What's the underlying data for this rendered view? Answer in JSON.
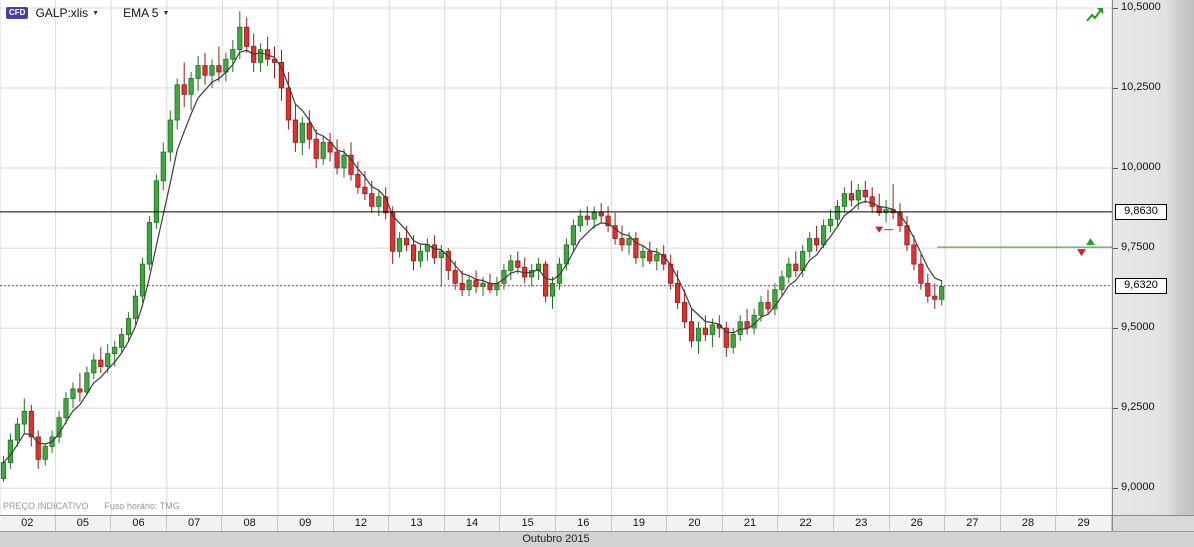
{
  "header": {
    "instrument_badge": "CFD",
    "instrument": "GALP:xlis",
    "indicator": "EMA 5",
    "dropdown_icon": "▼"
  },
  "footer": {
    "disclaimer": "PREÇO INDICATIVO",
    "timezone": "Fuso horário: TMG",
    "month_label": "Outubro 2015"
  },
  "colors": {
    "up": "#44a544",
    "up_border": "#1d741d",
    "down": "#e03030",
    "down_border": "#8f1c1c",
    "ema": "#3c3c3c",
    "grid": "#dadada",
    "badge": "#4a3f9f",
    "trend_icon": "#1e9e1e"
  },
  "chart_data": {
    "type": "candlestick",
    "title": "GALP:xlis — Outubro 2015",
    "indicator": {
      "name": "EMA",
      "period": 5
    },
    "y_ticks": [
      {
        "label": "10,5000",
        "value": 10.5
      },
      {
        "label": "10,2500",
        "value": 10.25
      },
      {
        "label": "10,0000",
        "value": 10.0
      },
      {
        "label": "9,7500",
        "value": 9.75
      },
      {
        "label": "9,5000",
        "value": 9.5
      },
      {
        "label": "9,2500",
        "value": 9.25
      },
      {
        "label": "9,0000",
        "value": 9.0
      }
    ],
    "y_range": [
      8.916,
      10.525
    ],
    "last_price": 9.632,
    "last_data_day_index": 16,
    "x_days": [
      {
        "label": "02",
        "candles": [
          [
            9.03,
            9.1,
            9.02,
            9.08
          ],
          [
            9.08,
            9.17,
            9.06,
            9.15
          ],
          [
            9.15,
            9.22,
            9.13,
            9.2
          ],
          [
            9.2,
            9.28,
            9.17,
            9.24
          ],
          [
            9.24,
            9.26,
            9.13,
            9.16
          ],
          [
            9.16,
            9.18,
            9.06,
            9.09
          ],
          [
            9.09,
            9.14,
            9.07,
            9.13
          ],
          [
            9.13,
            9.18,
            9.11,
            9.16
          ]
        ]
      },
      {
        "label": "05",
        "candles": [
          [
            9.16,
            9.24,
            9.14,
            9.22
          ],
          [
            9.22,
            9.3,
            9.2,
            9.28
          ],
          [
            9.28,
            9.33,
            9.25,
            9.31
          ],
          [
            9.31,
            9.36,
            9.27,
            9.3
          ],
          [
            9.3,
            9.38,
            9.29,
            9.36
          ],
          [
            9.36,
            9.42,
            9.34,
            9.4
          ],
          [
            9.4,
            9.44,
            9.36,
            9.38
          ],
          [
            9.38,
            9.45,
            9.36,
            9.42
          ]
        ]
      },
      {
        "label": "06",
        "candles": [
          [
            9.42,
            9.46,
            9.38,
            9.44
          ],
          [
            9.44,
            9.5,
            9.42,
            9.48
          ],
          [
            9.48,
            9.55,
            9.46,
            9.53
          ],
          [
            9.53,
            9.62,
            9.51,
            9.6
          ],
          [
            9.6,
            9.72,
            9.58,
            9.7
          ],
          [
            9.7,
            9.85,
            9.68,
            9.83
          ],
          [
            9.83,
            9.98,
            9.81,
            9.96
          ],
          [
            9.96,
            10.08,
            9.93,
            10.05
          ]
        ]
      },
      {
        "label": "07",
        "candles": [
          [
            10.05,
            10.18,
            10.02,
            10.15
          ],
          [
            10.15,
            10.28,
            10.12,
            10.26
          ],
          [
            10.26,
            10.33,
            10.19,
            10.23
          ],
          [
            10.23,
            10.3,
            10.18,
            10.28
          ],
          [
            10.28,
            10.35,
            10.24,
            10.32
          ],
          [
            10.32,
            10.36,
            10.26,
            10.29
          ],
          [
            10.29,
            10.34,
            10.25,
            10.32
          ],
          [
            10.32,
            10.38,
            10.27,
            10.3
          ]
        ]
      },
      {
        "label": "08",
        "candles": [
          [
            10.3,
            10.36,
            10.27,
            10.34
          ],
          [
            10.34,
            10.4,
            10.3,
            10.37
          ],
          [
            10.37,
            10.49,
            10.34,
            10.44
          ],
          [
            10.44,
            10.47,
            10.36,
            10.38
          ],
          [
            10.38,
            10.42,
            10.3,
            10.33
          ],
          [
            10.33,
            10.39,
            10.3,
            10.37
          ],
          [
            10.37,
            10.41,
            10.32,
            10.34
          ],
          [
            10.34,
            10.38,
            10.28,
            10.33
          ]
        ]
      },
      {
        "label": "09",
        "candles": [
          [
            10.33,
            10.37,
            10.21,
            10.25
          ],
          [
            10.25,
            10.3,
            10.12,
            10.15
          ],
          [
            10.15,
            10.2,
            10.05,
            10.08
          ],
          [
            10.08,
            10.16,
            10.04,
            10.14
          ],
          [
            10.14,
            10.18,
            10.06,
            10.09
          ],
          [
            10.09,
            10.12,
            10.0,
            10.03
          ],
          [
            10.03,
            10.1,
            10.01,
            10.08
          ],
          [
            10.08,
            10.11,
            10.02,
            10.05
          ]
        ]
      },
      {
        "label": "12",
        "candles": [
          [
            10.05,
            10.09,
            9.98,
            10.0
          ],
          [
            10.0,
            10.06,
            9.97,
            10.04
          ],
          [
            10.04,
            10.08,
            9.96,
            9.98
          ],
          [
            9.98,
            10.02,
            9.92,
            9.94
          ],
          [
            9.94,
            9.99,
            9.9,
            9.92
          ],
          [
            9.92,
            9.96,
            9.86,
            9.88
          ],
          [
            9.88,
            9.93,
            9.85,
            9.91
          ],
          [
            9.91,
            9.94,
            9.84,
            9.86
          ]
        ]
      },
      {
        "label": "13",
        "candles": [
          [
            9.86,
            9.88,
            9.7,
            9.74
          ],
          [
            9.74,
            9.8,
            9.72,
            9.78
          ],
          [
            9.78,
            9.82,
            9.74,
            9.76
          ],
          [
            9.76,
            9.79,
            9.68,
            9.71
          ],
          [
            9.71,
            9.76,
            9.69,
            9.74
          ],
          [
            9.74,
            9.78,
            9.71,
            9.76
          ],
          [
            9.76,
            9.79,
            9.7,
            9.72
          ],
          [
            9.72,
            9.76,
            9.63,
            9.74
          ]
        ]
      },
      {
        "label": "14",
        "candles": [
          [
            9.74,
            9.75,
            9.65,
            9.68
          ],
          [
            9.68,
            9.71,
            9.62,
            9.64
          ],
          [
            9.64,
            9.68,
            9.6,
            9.62
          ],
          [
            9.62,
            9.66,
            9.6,
            9.65
          ],
          [
            9.65,
            9.68,
            9.61,
            9.63
          ],
          [
            9.63,
            9.66,
            9.6,
            9.64
          ],
          [
            9.64,
            9.67,
            9.61,
            9.62
          ],
          [
            9.62,
            9.66,
            9.6,
            9.64
          ]
        ]
      },
      {
        "label": "15",
        "candles": [
          [
            9.64,
            9.7,
            9.62,
            9.68
          ],
          [
            9.68,
            9.73,
            9.65,
            9.71
          ],
          [
            9.71,
            9.74,
            9.67,
            9.69
          ],
          [
            9.69,
            9.72,
            9.64,
            9.66
          ],
          [
            9.66,
            9.7,
            9.63,
            9.68
          ],
          [
            9.68,
            9.72,
            9.65,
            9.7
          ],
          [
            9.7,
            9.71,
            9.58,
            9.6
          ],
          [
            9.6,
            9.66,
            9.56,
            9.64
          ]
        ]
      },
      {
        "label": "16",
        "candles": [
          [
            9.64,
            9.72,
            9.62,
            9.7
          ],
          [
            9.7,
            9.78,
            9.68,
            9.76
          ],
          [
            9.76,
            9.84,
            9.74,
            9.82
          ],
          [
            9.82,
            9.87,
            9.8,
            9.85
          ],
          [
            9.85,
            9.88,
            9.82,
            9.84
          ],
          [
            9.84,
            9.88,
            9.81,
            9.86
          ],
          [
            9.86,
            9.89,
            9.83,
            9.85
          ],
          [
            9.85,
            9.88,
            9.8,
            9.82
          ]
        ]
      },
      {
        "label": "19",
        "candles": [
          [
            9.82,
            9.86,
            9.76,
            9.78
          ],
          [
            9.78,
            9.82,
            9.74,
            9.76
          ],
          [
            9.76,
            9.8,
            9.73,
            9.78
          ],
          [
            9.78,
            9.8,
            9.7,
            9.72
          ],
          [
            9.72,
            9.76,
            9.69,
            9.74
          ],
          [
            9.74,
            9.77,
            9.7,
            9.71
          ],
          [
            9.71,
            9.75,
            9.68,
            9.73
          ],
          [
            9.73,
            9.76,
            9.68,
            9.7
          ]
        ]
      },
      {
        "label": "20",
        "candles": [
          [
            9.7,
            9.73,
            9.62,
            9.64
          ],
          [
            9.64,
            9.68,
            9.56,
            9.58
          ],
          [
            9.58,
            9.62,
            9.5,
            9.52
          ],
          [
            9.52,
            9.56,
            9.44,
            9.46
          ],
          [
            9.46,
            9.52,
            9.42,
            9.5
          ],
          [
            9.5,
            9.54,
            9.46,
            9.48
          ],
          [
            9.48,
            9.53,
            9.44,
            9.51
          ],
          [
            9.51,
            9.54,
            9.47,
            9.5
          ]
        ]
      },
      {
        "label": "21",
        "candles": [
          [
            9.5,
            9.52,
            9.41,
            9.44
          ],
          [
            9.44,
            9.5,
            9.42,
            9.48
          ],
          [
            9.48,
            9.54,
            9.46,
            9.52
          ],
          [
            9.52,
            9.56,
            9.48,
            9.5
          ],
          [
            9.5,
            9.56,
            9.48,
            9.54
          ],
          [
            9.54,
            9.6,
            9.52,
            9.58
          ],
          [
            9.58,
            9.62,
            9.54,
            9.56
          ],
          [
            9.56,
            9.64,
            9.54,
            9.62
          ]
        ]
      },
      {
        "label": "22",
        "candles": [
          [
            9.62,
            9.68,
            9.6,
            9.66
          ],
          [
            9.66,
            9.72,
            9.64,
            9.7
          ],
          [
            9.7,
            9.74,
            9.66,
            9.68
          ],
          [
            9.68,
            9.76,
            9.66,
            9.74
          ],
          [
            9.74,
            9.8,
            9.72,
            9.78
          ],
          [
            9.78,
            9.82,
            9.74,
            9.76
          ],
          [
            9.76,
            9.84,
            9.75,
            9.82
          ],
          [
            9.82,
            9.87,
            9.8,
            9.84
          ]
        ]
      },
      {
        "label": "23",
        "candles": [
          [
            9.84,
            9.9,
            9.82,
            9.88
          ],
          [
            9.88,
            9.94,
            9.86,
            9.92
          ],
          [
            9.92,
            9.96,
            9.88,
            9.9
          ],
          [
            9.9,
            9.95,
            9.87,
            9.93
          ],
          [
            9.93,
            9.96,
            9.89,
            9.91
          ],
          [
            9.91,
            9.94,
            9.86,
            9.88
          ],
          [
            9.88,
            9.92,
            9.85,
            9.86
          ],
          [
            9.86,
            9.9,
            9.83,
            9.87
          ]
        ]
      },
      {
        "label": "26",
        "candles": [
          [
            9.87,
            9.95,
            9.84,
            9.86
          ],
          [
            9.86,
            9.89,
            9.8,
            9.82
          ],
          [
            9.82,
            9.85,
            9.74,
            9.76
          ],
          [
            9.76,
            9.79,
            9.68,
            9.7
          ],
          [
            9.7,
            9.73,
            9.62,
            9.64
          ],
          [
            9.64,
            9.67,
            9.58,
            9.6
          ],
          [
            9.6,
            9.64,
            9.56,
            9.59
          ],
          [
            9.59,
            9.65,
            9.57,
            9.63
          ]
        ]
      },
      {
        "label": "27",
        "candles": []
      },
      {
        "label": "28",
        "candles": []
      },
      {
        "label": "29",
        "candles": []
      }
    ],
    "hlines": [
      {
        "label": "9,8630",
        "price": 9.863,
        "style": "solid",
        "color": "#000000"
      },
      {
        "label": "9,6320",
        "price": 9.632,
        "style": "dotted",
        "color": "#aa3333"
      }
    ],
    "order_line": {
      "price": 9.753,
      "color": "#2f9e2f"
    },
    "marker": {
      "type": "sell",
      "day_index": 15,
      "candle_index": 6,
      "price": 9.795,
      "color": "#cc2222"
    }
  }
}
